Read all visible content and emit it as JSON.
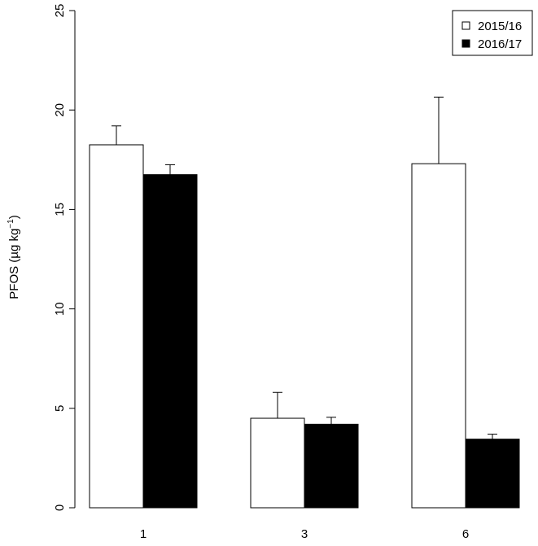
{
  "chart_data": {
    "type": "bar",
    "categories": [
      "1",
      "3",
      "6"
    ],
    "series": [
      {
        "name": "2015/16",
        "values": [
          18.25,
          4.5,
          17.3
        ],
        "errors": [
          0.95,
          1.3,
          3.35
        ],
        "color": "#ffffff"
      },
      {
        "name": "2016/17",
        "values": [
          16.75,
          4.2,
          3.45
        ],
        "errors": [
          0.5,
          0.35,
          0.25
        ],
        "color": "#000000"
      }
    ],
    "ylabel_main": "PFOS (µg kg",
    "ylabel_sup": "−1",
    "ylabel_end": ")",
    "ylim": [
      0,
      25
    ],
    "yticks": [
      "0",
      "5",
      "10",
      "15",
      "20",
      "25"
    ],
    "legend_position": "top-right",
    "grid": false
  }
}
